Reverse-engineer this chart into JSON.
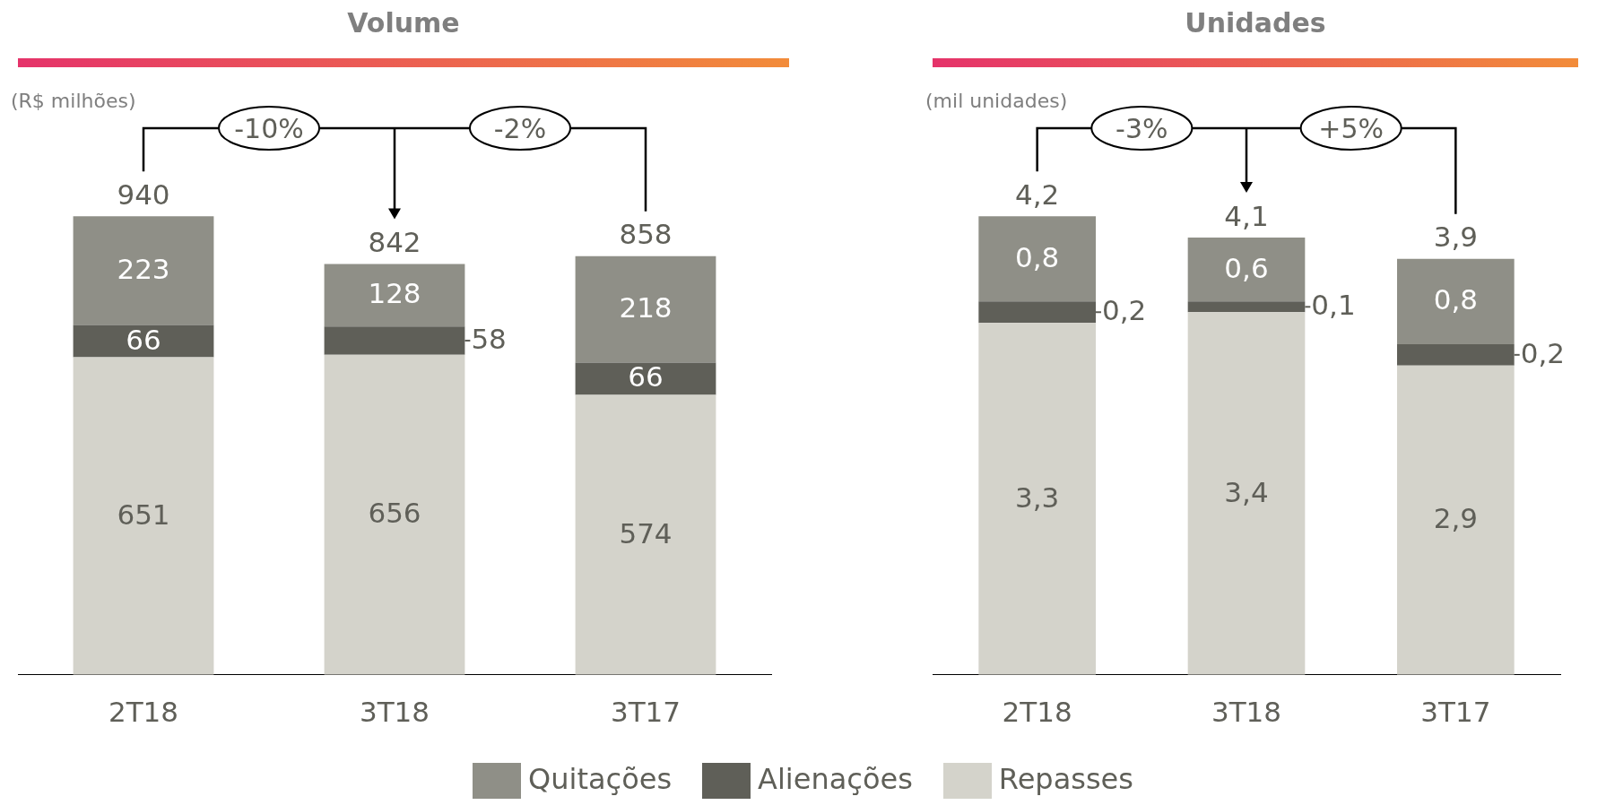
{
  "chart_data": [
    {
      "type": "bar",
      "title": "Volume",
      "subtitle": "(R$ milhões)",
      "categories": [
        "2T18",
        "3T18",
        "3T17"
      ],
      "stacked": true,
      "legend": "bottom",
      "grid": false,
      "series": [
        {
          "name": "Repasses",
          "color": "#d4d3cb",
          "values": [
            651,
            656,
            574
          ],
          "value_labels": [
            "651",
            "656",
            "574"
          ]
        },
        {
          "name": "Alienações",
          "color": "#5f5f58",
          "values": [
            66,
            58,
            66
          ],
          "value_labels": [
            "66",
            "58",
            "66"
          ]
        },
        {
          "name": "Quitações",
          "color": "#8f8f87",
          "values": [
            223,
            128,
            218
          ],
          "value_labels": [
            "223",
            "128",
            "218"
          ]
        }
      ],
      "totals": [
        "940",
        "842",
        "858"
      ],
      "annotations": [
        "-10%",
        "-2%"
      ]
    },
    {
      "type": "bar",
      "title": "Unidades",
      "subtitle": "(mil unidades)",
      "categories": [
        "2T18",
        "3T18",
        "3T17"
      ],
      "stacked": true,
      "grid": false,
      "series": [
        {
          "color": "#d4d3cb",
          "values": [
            3.3,
            3.4,
            2.9
          ],
          "value_labels": [
            "3,3",
            "3,4",
            "2,9"
          ]
        },
        {
          "color": "#5f5f58",
          "values": [
            0.2,
            0.1,
            0.2
          ],
          "value_labels": [
            "0,2",
            "0,1",
            "0,2"
          ]
        },
        {
          "color": "#8f8f87",
          "values": [
            0.8,
            0.6,
            0.8
          ],
          "value_labels": [
            "0,8",
            "0,6",
            "0,8"
          ]
        }
      ],
      "totals": [
        "4,2",
        "4,1",
        "3,9"
      ],
      "annotations": [
        "-3%",
        "+5%"
      ]
    }
  ]
}
